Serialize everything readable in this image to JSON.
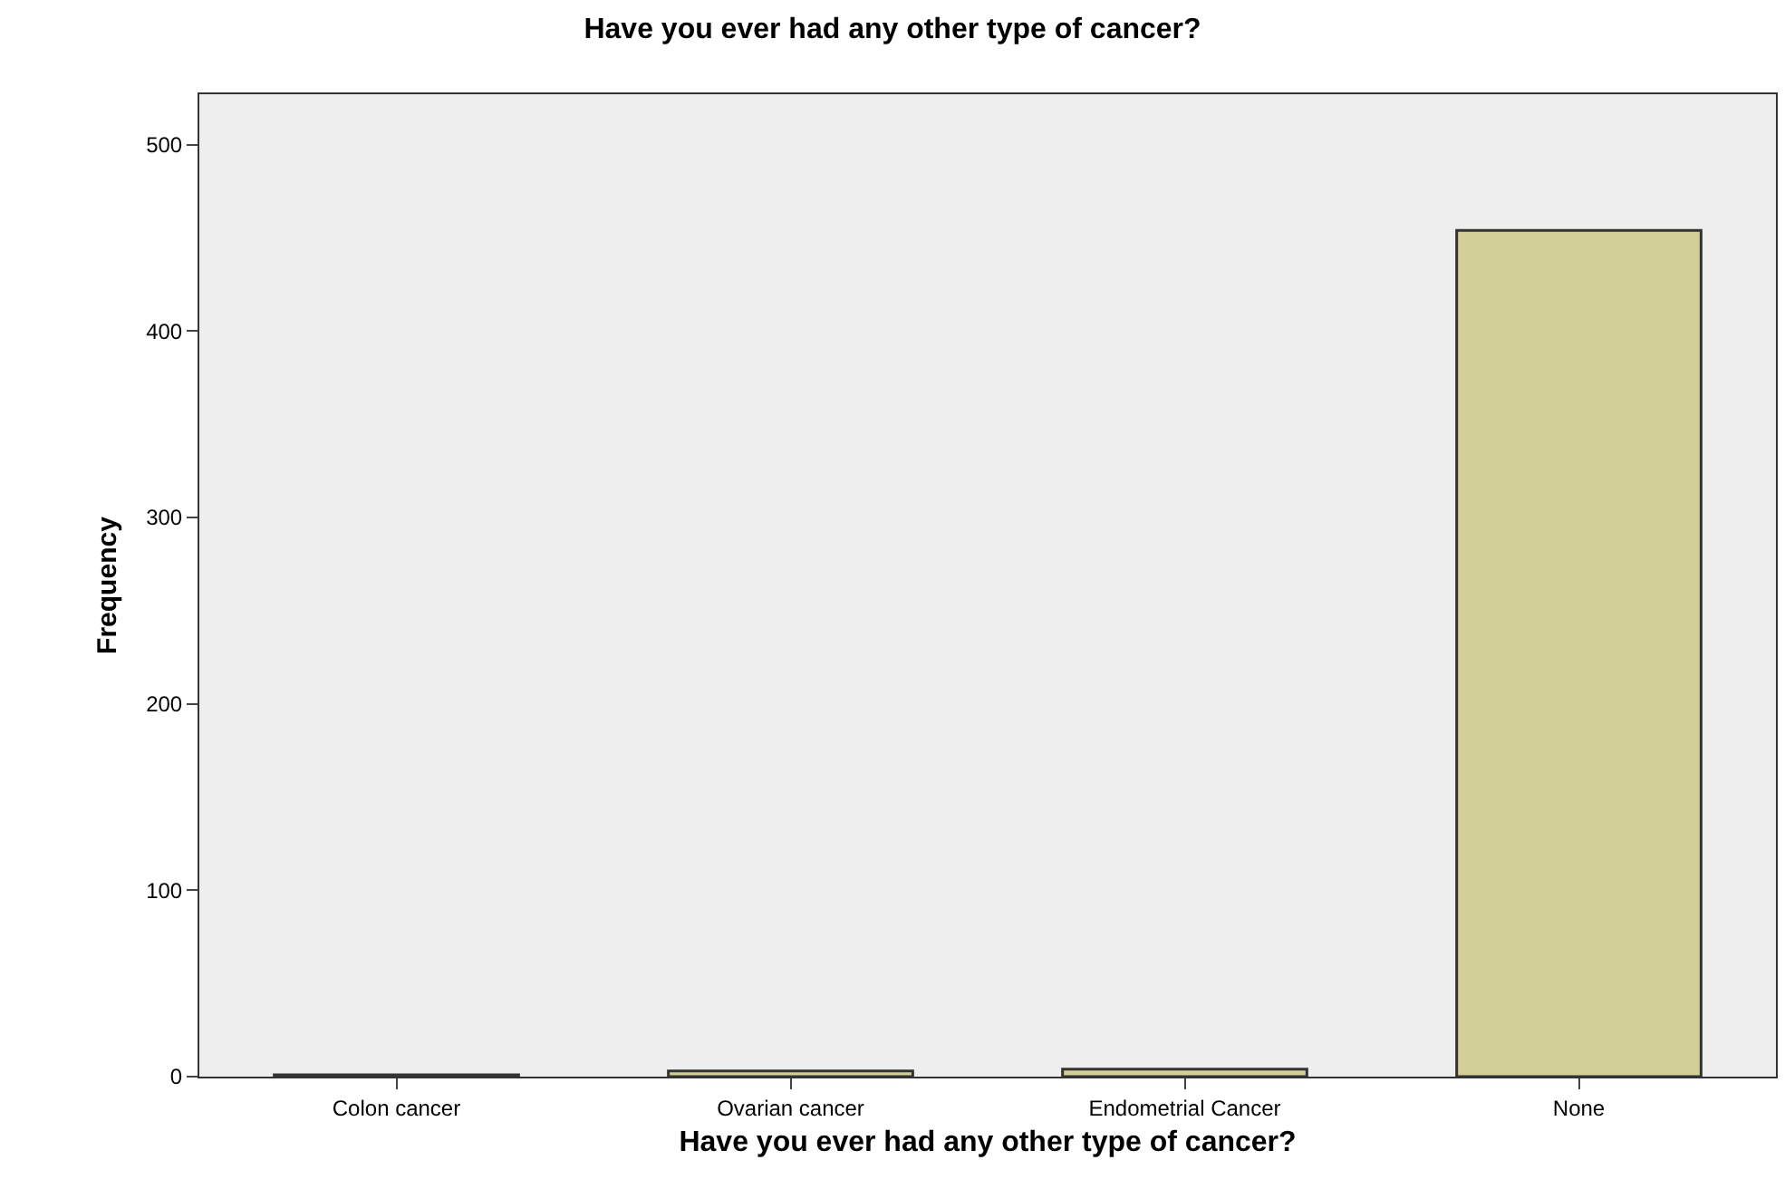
{
  "chart_data": {
    "type": "bar",
    "title": "Have you ever had any other type of cancer?",
    "xlabel": "Have you ever had any other type of cancer?",
    "ylabel": "Frequency",
    "categories": [
      "Colon cancer",
      "Ovarian cancer",
      "Endometrial Cancer",
      "None"
    ],
    "series": [
      {
        "color": "#d3cf98",
        "values": [
          1,
          3,
          4,
          454
        ]
      }
    ],
    "ylim": [
      0,
      527
    ],
    "yticks": [
      0,
      100,
      200,
      300,
      400,
      500
    ],
    "grid": false,
    "legend": false
  }
}
